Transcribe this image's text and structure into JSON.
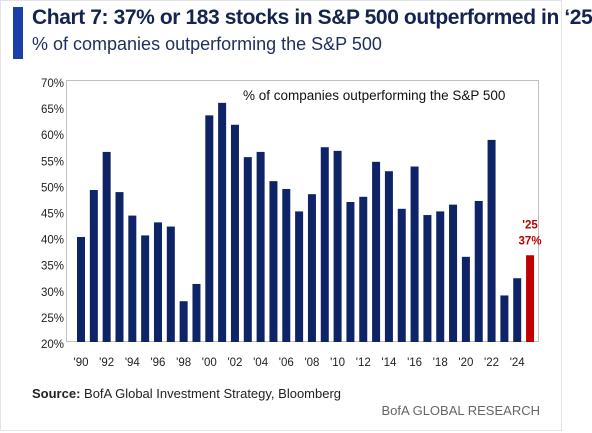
{
  "header": {
    "title": "Chart 7: 37% or 183 stocks in S&P 500 outperformed in ‘25",
    "subtitle": "% of companies outperforming the S&P 500"
  },
  "footer": {
    "source_label": "Source:",
    "source_text": " BofA Global Investment Strategy, Bloomberg",
    "brand": "BofA GLOBAL RESEARCH"
  },
  "colors": {
    "bar": "#0e2466",
    "highlight": "#c00000",
    "accent": "#1a3fa8"
  },
  "chart_data": {
    "type": "bar",
    "title": "Chart 7: 37% or 183 stocks in S&P 500 outperformed in ‘25",
    "legend": "% of companies outperforming the S&P 500",
    "categories": [
      "1990",
      "1991",
      "1992",
      "1993",
      "1994",
      "1995",
      "1996",
      "1997",
      "1998",
      "1999",
      "2000",
      "2001",
      "2002",
      "2003",
      "2004",
      "2005",
      "2006",
      "2007",
      "2008",
      "2009",
      "2010",
      "2011",
      "2012",
      "2013",
      "2014",
      "2015",
      "2016",
      "2017",
      "2018",
      "2019",
      "2020",
      "2021",
      "2022",
      "2023",
      "2024",
      "2025"
    ],
    "values": [
      40.5,
      49.5,
      56.8,
      49.1,
      44.6,
      40.8,
      43.3,
      42.5,
      28.2,
      31.5,
      63.8,
      66.2,
      62.0,
      55.8,
      56.8,
      51.2,
      49.7,
      45.4,
      48.7,
      57.7,
      57.0,
      47.2,
      48.2,
      54.9,
      53.1,
      45.9,
      54.0,
      44.7,
      45.4,
      46.7,
      36.7,
      47.4,
      59.1,
      29.3,
      32.6,
      37.0
    ],
    "highlight_index": 35,
    "highlight_label_year": "'25",
    "highlight_label_value": "37%",
    "x_tick_labels": [
      "'90",
      "'92",
      "'94",
      "'96",
      "'98",
      "'00",
      "'02",
      "'04",
      "'06",
      "'08",
      "'10",
      "'12",
      "'14",
      "'16",
      "'18",
      "'20",
      "'22",
      "'24"
    ],
    "y_tick_labels": [
      "20%",
      "25%",
      "30%",
      "35%",
      "40%",
      "45%",
      "50%",
      "55%",
      "60%",
      "65%",
      "70%"
    ],
    "ylim": [
      20,
      70
    ],
    "grid": false,
    "legend_position": "top-center"
  }
}
